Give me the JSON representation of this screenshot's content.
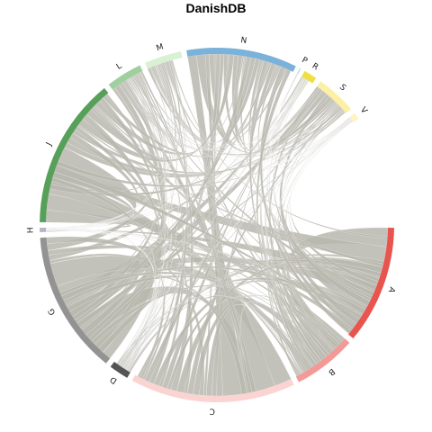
{
  "title": "DanishDB",
  "chart_data": {
    "type": "chord",
    "title": "DanishDB",
    "sectors": [
      {
        "label": "A",
        "color": "#e8544e",
        "start": 0,
        "end": 0.113
      },
      {
        "label": "B",
        "color": "#f29a97",
        "start": 0.113,
        "end": 0.176
      },
      {
        "label": "C",
        "color": "#fbd4d2",
        "start": 0.176,
        "end": 0.332
      },
      {
        "label": "D",
        "color": "#545454",
        "start": 0.332,
        "end": 0.355
      },
      {
        "label": "G",
        "color": "#939393",
        "start": 0.355,
        "end": 0.491
      },
      {
        "label": "H",
        "color": "#b4b4cc",
        "start": 0.491,
        "end": 0.5
      },
      {
        "label": "J",
        "color": "#57a05a",
        "start": 0.5,
        "end": 0.643
      },
      {
        "label": "L",
        "color": "#9fcf9e",
        "start": 0.643,
        "end": 0.681
      },
      {
        "label": "M",
        "color": "#d7f1d2",
        "start": 0.681,
        "end": 0.72
      },
      {
        "label": "N",
        "color": "#7ab2d9",
        "start": 0.72,
        "end": 0.826
      },
      {
        "label": "P",
        "color": "#b6d6ec",
        "start": 0.826,
        "end": 0.83
      },
      {
        "label": "R",
        "color": "#f0df40",
        "start": 0.83,
        "end": 0.847
      },
      {
        "label": "S",
        "color": "#fdefa3",
        "start": 0.847,
        "end": 0.889
      },
      {
        "label": "V",
        "color": "#fff3c4",
        "start": 0.889,
        "end": 0.9
      }
    ],
    "ribbon_color": "#b9b7ae"
  }
}
